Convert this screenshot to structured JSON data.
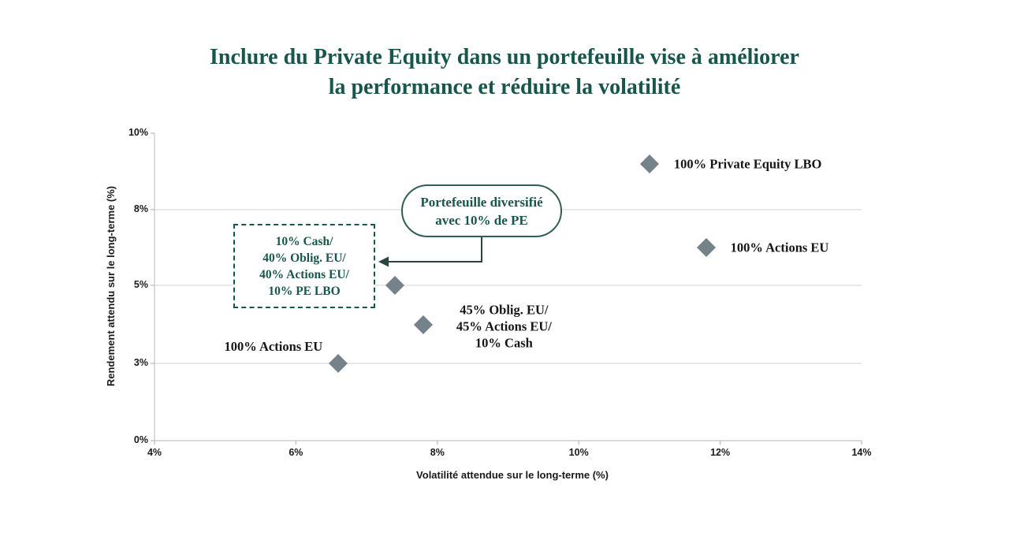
{
  "page": {
    "background": "#FFFFFF"
  },
  "colors": {
    "accent_teal": "#17564C",
    "callout_border": "#2F5F55",
    "marker": "#76828A",
    "gridline": "#DADADA",
    "axis_line": "#C4C4C4",
    "tick": "#B9B9B9",
    "arrow": "#2C443F",
    "label_text": "#161616"
  },
  "title": {
    "line1": "Inclure du Private Equity dans un portefeuille vise à améliorer",
    "line2": "la performance et réduire la volatilité"
  },
  "chart_data": {
    "type": "scatter",
    "title": "Inclure du Private Equity dans un portefeuille vise à améliorer la performance et réduire la volatilité",
    "xlabel": "Volatilité attendue sur le long-terme (%)",
    "ylabel": "Rendement attendu sur le long-terme (%)",
    "xlim": [
      4,
      14
    ],
    "x_ticks": [
      "4%",
      "6%",
      "8%",
      "10%",
      "12%",
      "14%"
    ],
    "x_tick_values": [
      4,
      6,
      8,
      10,
      12,
      14
    ],
    "y_ticks": [
      "0%",
      "3%",
      "5%",
      "8%",
      "10%"
    ],
    "y_tick_values": [
      0,
      3,
      5,
      8,
      10
    ],
    "gridline_values": [
      3,
      5,
      8
    ],
    "grid": "horizontal-only",
    "legend": "none",
    "marker": {
      "shape": "diamond",
      "color": "#76828A"
    },
    "points": [
      {
        "label": "100% Private Equity LBO",
        "x": 11.0,
        "y": 9.2,
        "label_side": "right"
      },
      {
        "label": "100% Actions EU",
        "x": 11.8,
        "y": 6.5,
        "label_side": "right"
      },
      {
        "label": "",
        "x": 7.4,
        "y": 5.0,
        "label_side": "none",
        "annotated_by": "callout"
      },
      {
        "label": "45% Oblig. EU/\n45% Actions EU/\n10% Cash",
        "x": 7.8,
        "y": 4.0,
        "label_side": "right-multiline"
      },
      {
        "label": "100% Actions EU",
        "x": 6.6,
        "y": 3.0,
        "label_side": "left-above"
      }
    ]
  },
  "callout": {
    "line1": "Portefeuille diversifié",
    "line2": "avec 10% de PE"
  },
  "allocation_box": {
    "lines": [
      "10% Cash/",
      "40% Oblig. EU/",
      "40% Actions EU/",
      "10% PE LBO"
    ]
  }
}
